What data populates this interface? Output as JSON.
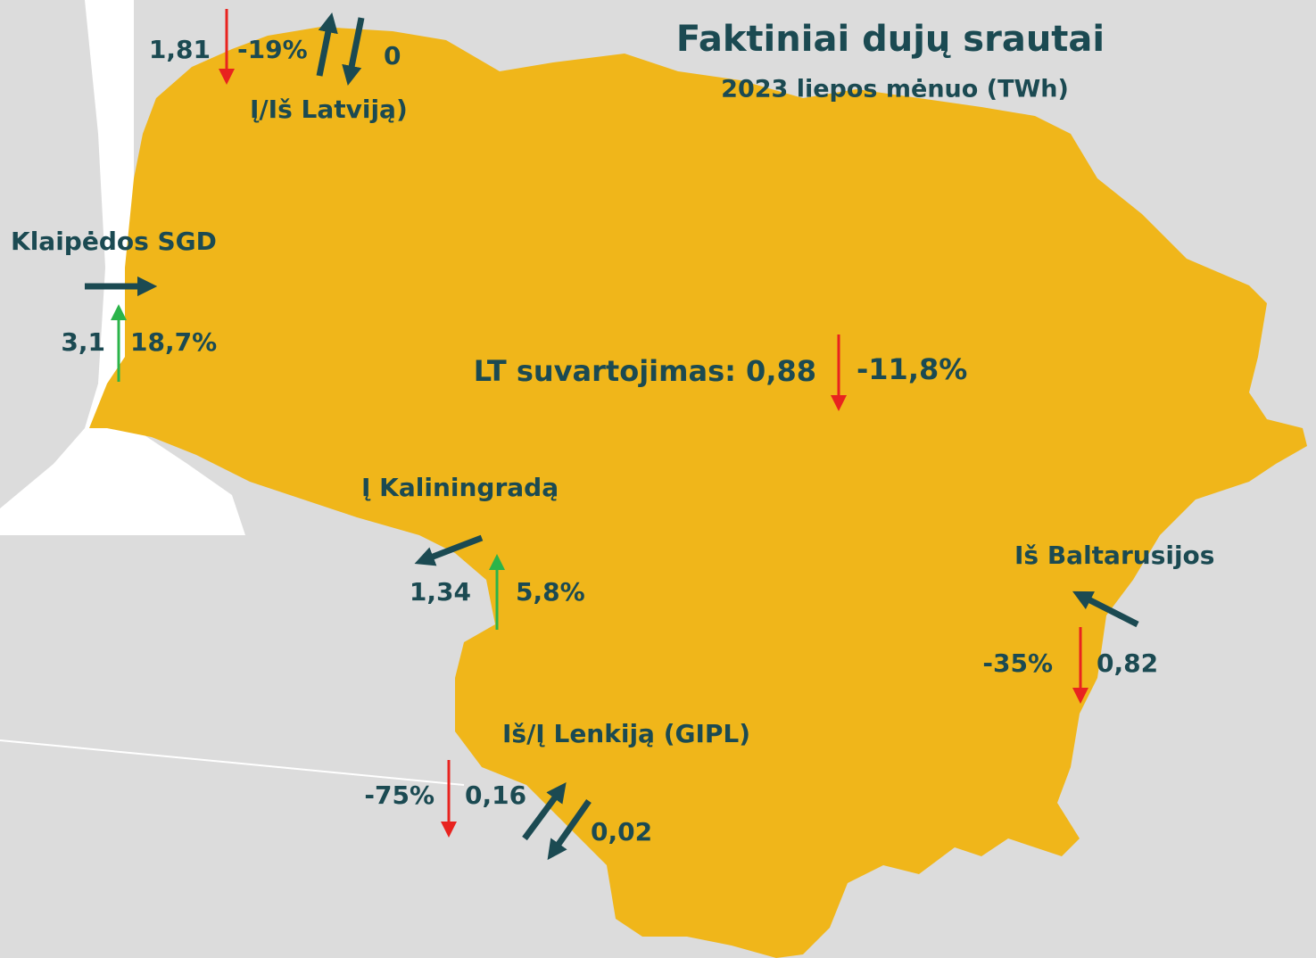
{
  "header": {
    "title": "Faktiniai dujų srautai",
    "subtitle": "2023 liepos mėnuo (TWh)"
  },
  "flows": {
    "latvia": {
      "label": "Į/Iš Latviją)",
      "in_value": "1,81",
      "change": "-19%",
      "out_value": "0"
    },
    "klaipeda": {
      "label": "Klaipėdos SGD",
      "value": "3,1",
      "change": "18,7%"
    },
    "consumption": {
      "label": "LT suvartojimas: 0,88",
      "change": "-11,8%"
    },
    "kaliningrad": {
      "label": "Į Kaliningradą",
      "value": "1,34",
      "change": "5,8%"
    },
    "belarus": {
      "label": "Iš Baltarusijos",
      "change": "-35%",
      "value": "0,82"
    },
    "poland": {
      "label": "Iš/Į Lenkiją (GIPL)",
      "change": "-75%",
      "in_value": "0,16",
      "out_value": "0,02"
    }
  }
}
